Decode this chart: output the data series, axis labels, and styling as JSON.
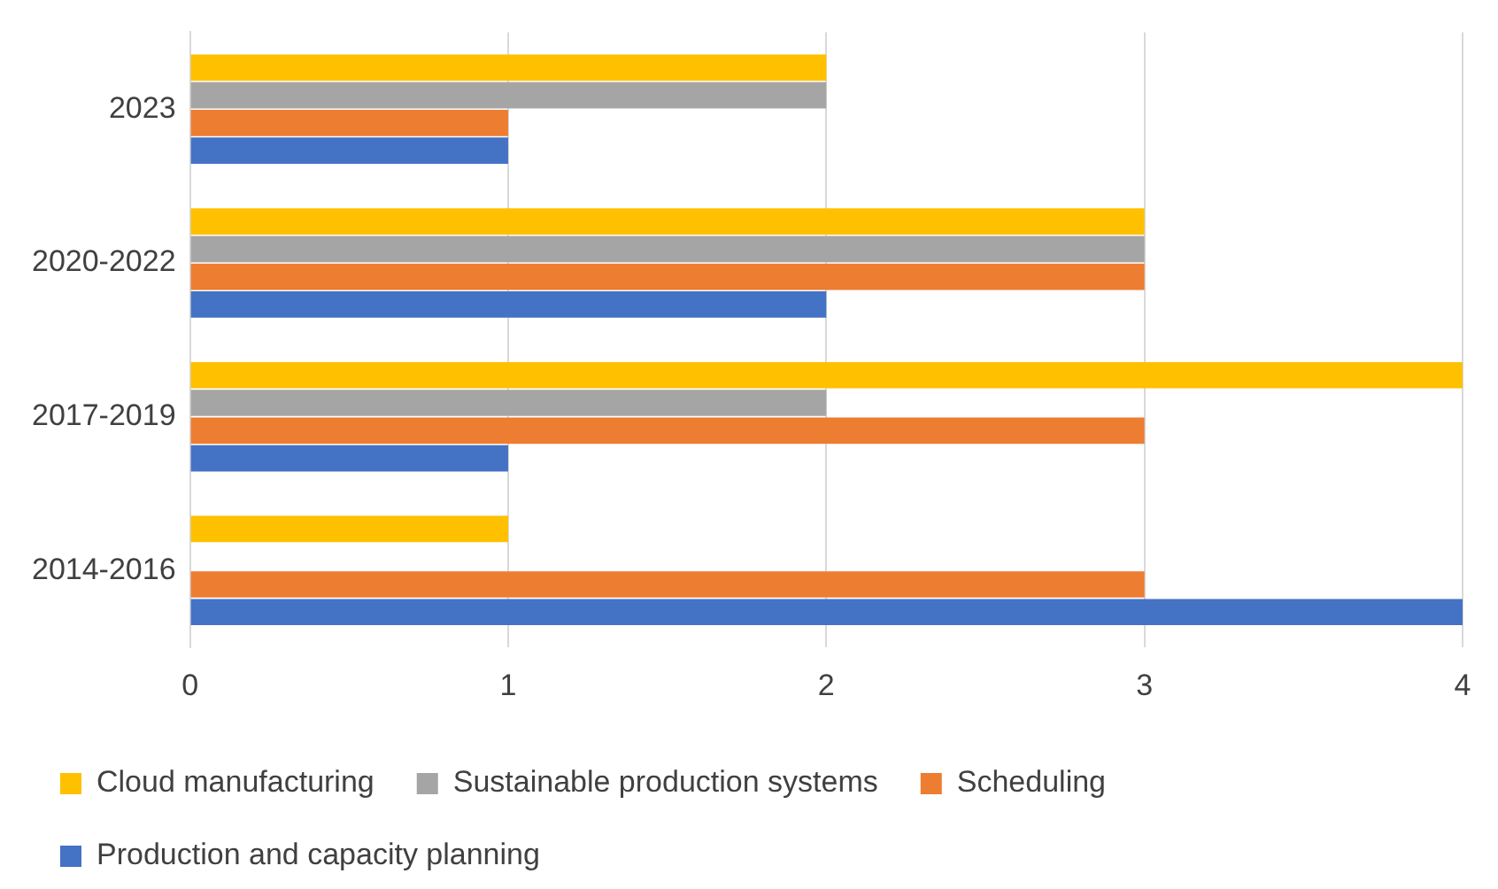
{
  "chart_data": {
    "type": "bar",
    "orientation": "horizontal",
    "categories": [
      "2023",
      "2020-2022",
      "2017-2019",
      "2014-2016"
    ],
    "series": [
      {
        "name": "Cloud manufacturing",
        "color": "#ffc000",
        "values": [
          2,
          3,
          4,
          1
        ]
      },
      {
        "name": "Sustainable production systems",
        "color": "#a5a5a5",
        "values": [
          2,
          3,
          2,
          0
        ]
      },
      {
        "name": "Scheduling",
        "color": "#ed7d31",
        "values": [
          1,
          3,
          3,
          3
        ]
      },
      {
        "name": "Production and capacity planning",
        "color": "#4472c4",
        "values": [
          1,
          2,
          1,
          4
        ]
      }
    ],
    "xlim": [
      0,
      4
    ],
    "xticks": [
      0,
      1,
      2,
      3,
      4
    ],
    "grid": "x",
    "legend": "bottom"
  }
}
